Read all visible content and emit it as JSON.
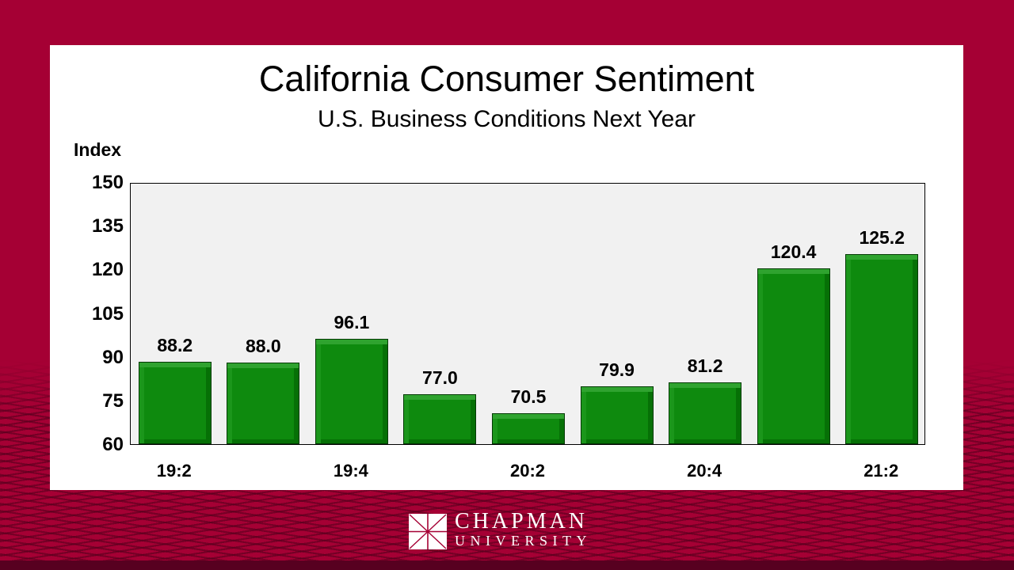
{
  "slide": {
    "title": "California Consumer Sentiment",
    "subtitle": "U.S. Business Conditions Next Year",
    "axis_title": "Index"
  },
  "chart_data": {
    "type": "bar",
    "categories": [
      "19:2",
      "",
      "19:4",
      "",
      "20:2",
      "",
      "20:4",
      "",
      "21:2"
    ],
    "values": [
      88.2,
      88.0,
      96.1,
      77.0,
      70.5,
      79.9,
      81.2,
      120.4,
      125.2
    ],
    "value_labels": [
      "88.2",
      "88.0",
      "96.1",
      "77.0",
      "70.5",
      "79.9",
      "81.2",
      "120.4",
      "125.2"
    ],
    "title": "California Consumer Sentiment",
    "subtitle": "U.S. Business Conditions Next Year",
    "xlabel": "",
    "ylabel": "Index",
    "ylim": [
      60,
      150
    ],
    "yticks": [
      150,
      135,
      120,
      105,
      90,
      75,
      60
    ],
    "grid": false,
    "legend": false
  },
  "footer": {
    "logo_line1": "CHAPMAN",
    "logo_line2": "UNIVERSITY"
  },
  "colors": {
    "background": "#A50034",
    "mesh_line": "#50001C",
    "card": "#FFFFFF",
    "plot_background": "#F1F1F1",
    "bar_green": "#0E8A0E",
    "text": "#000000",
    "logo_text": "#FFFFFF"
  }
}
